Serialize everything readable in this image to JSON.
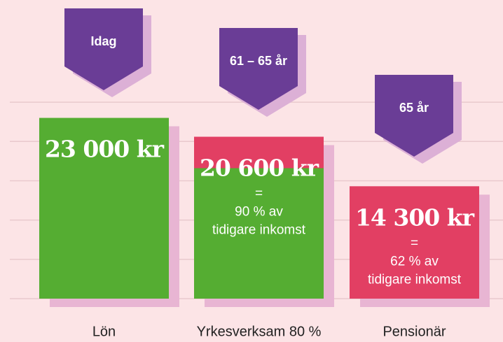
{
  "chart_data": {
    "type": "bar",
    "categories": [
      "Lön",
      "Yrkesverksam 80 %",
      "Pensionär"
    ],
    "badges": [
      "Idag",
      "61 – 65 år",
      "65 år"
    ],
    "values": [
      23000,
      20600,
      14300
    ],
    "value_labels": [
      "23 000 kr",
      "20 600 kr",
      "14 300 kr"
    ],
    "bar_colors": [
      "#55ad32",
      "#e23f63",
      "#e23f63"
    ],
    "green_values": [
      null,
      16600,
      null
    ],
    "green_color": "#55ad32",
    "notes": [
      null,
      [
        "=",
        "90 % av",
        "tidigare inkomst"
      ],
      [
        "=",
        "62 % av",
        "tidigare inkomst"
      ]
    ],
    "ylim": [
      0,
      38000
    ],
    "grid_values": [
      0,
      5000,
      10000,
      15000,
      20000,
      25000
    ],
    "grid": true
  }
}
